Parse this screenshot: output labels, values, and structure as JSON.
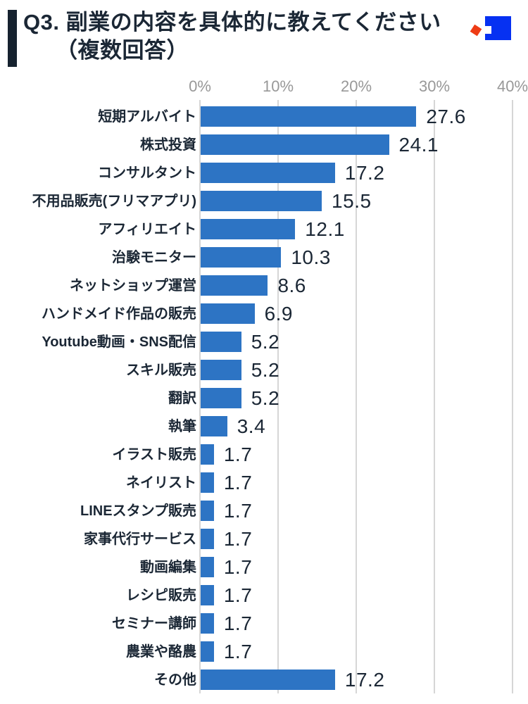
{
  "header": {
    "title_line1": "Q3. 副業の内容を具体的に教えてください",
    "title_line2": "（複数回答）",
    "logo_icon": "brand-logo-square"
  },
  "colors": {
    "bar": "#2d74c4",
    "text_navy": "#1b2735",
    "axis_gray": "#989898",
    "gridline": "#d6d6d6",
    "accent_bar": "#16222f",
    "logo_blue": "#0631f2",
    "logo_red": "#ee3c15"
  },
  "chart_data": {
    "type": "bar",
    "orientation": "horizontal",
    "title": "Q3. 副業の内容を具体的に教えてください（複数回答）",
    "xlabel": "",
    "ylabel": "",
    "unit": "%",
    "xlim": [
      0,
      40
    ],
    "grid": true,
    "x_ticks": [
      "0%",
      "10%",
      "20%",
      "30%",
      "40%"
    ],
    "x_tick_values": [
      0,
      10,
      20,
      30,
      40
    ],
    "categories": [
      "短期アルバイト",
      "株式投資",
      "コンサルタント",
      "不用品販売(フリマアプリ)",
      "アフィリエイト",
      "治験モニター",
      "ネットショップ運営",
      "ハンドメイド作品の販売",
      "Youtube動画・SNS配信",
      "スキル販売",
      "翻訳",
      "執筆",
      "イラスト販売",
      "ネイリスト",
      "LINEスタンプ販売",
      "家事代行サービス",
      "動画編集",
      "レシピ販売",
      "セミナー講師",
      "農業や酪農",
      "その他"
    ],
    "values": [
      27.6,
      24.1,
      17.2,
      15.5,
      12.1,
      10.3,
      8.6,
      6.9,
      5.2,
      5.2,
      5.2,
      3.4,
      1.7,
      1.7,
      1.7,
      1.7,
      1.7,
      1.7,
      1.7,
      1.7,
      17.2
    ],
    "value_labels": [
      "27.6",
      "24.1",
      "17.2",
      "15.5",
      "12.1",
      "10.3",
      "8.6",
      "6.9",
      "5.2",
      "5.2",
      "5.2",
      "3.4",
      "1.7",
      "1.7",
      "1.7",
      "1.7",
      "1.7",
      "1.7",
      "1.7",
      "1.7",
      "17.2"
    ]
  }
}
